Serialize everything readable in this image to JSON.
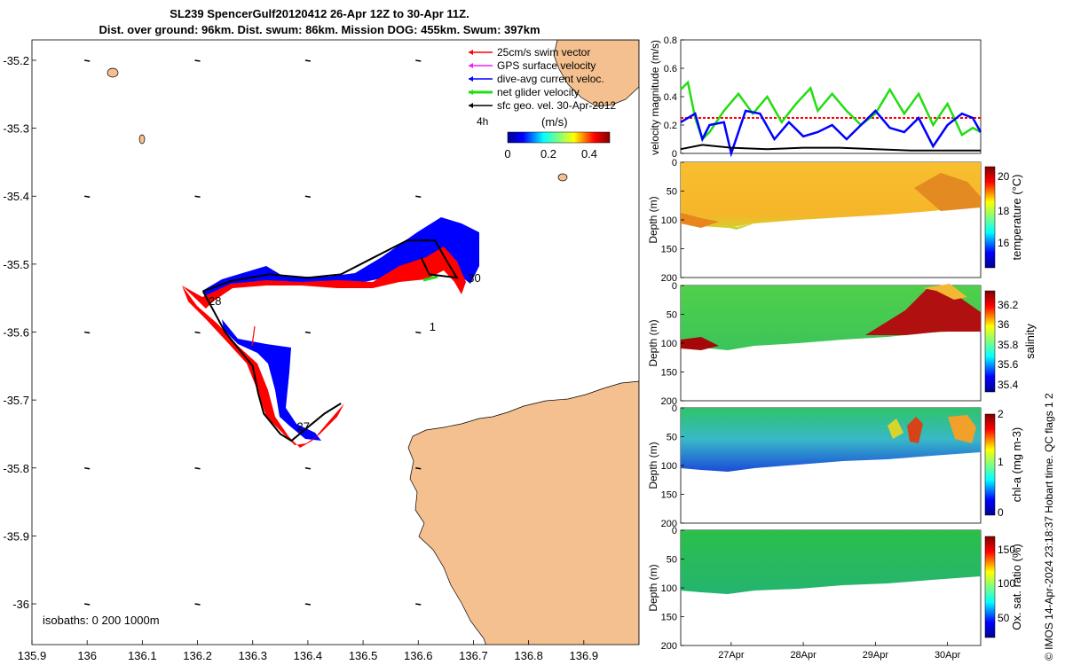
{
  "title": "SL239 SpencerGulf20120412 26-Apr 12Z to 30-Apr 11Z.",
  "subtitle": "Dist. over ground: 96km. Dist. swum: 86km. Mission DOG: 455km. Swum: 397km",
  "footer": "© IMOS 14-Apr-2024 23:18:37 Hobart time. QC flags 1  2",
  "colors": {
    "land": "#f5c08f",
    "red": "#ff0000",
    "blue": "#0000ff",
    "green": "#22dd11",
    "magenta": "#ee22ee",
    "black": "#000000"
  },
  "chart_data": [
    {
      "type": "scatter",
      "title": "Glider track map",
      "xlim": [
        135.9,
        137.0
      ],
      "ylim": [
        -36.06,
        -35.17
      ],
      "x_ticks": [
        "135.9",
        "136",
        "136.1",
        "136.2",
        "136.3",
        "136.4",
        "136.5",
        "136.6",
        "136.7",
        "136.8",
        "136.9"
      ],
      "y_ticks": [
        "-35.2",
        "-35.3",
        "-35.4",
        "-35.5",
        "-35.6",
        "-35.7",
        "-35.8",
        "-35.9",
        "-36"
      ],
      "legend": [
        {
          "label": "25cm/s swim vector",
          "color": "#ff0000"
        },
        {
          "label": "GPS surface velocity",
          "color": "#ee22ee"
        },
        {
          "label": "dive-avg current veloc.",
          "color": "#0000ff"
        },
        {
          "label": "net glider velocity",
          "color": "#22dd11"
        },
        {
          "label": "sfc geo. vel. 30-Apr-2012",
          "color": "#000000"
        }
      ],
      "legend_extra": "4h",
      "colorbar": {
        "label": "(m/s)",
        "ticks": [
          "0",
          "0.2",
          "0.4"
        ]
      },
      "isobaths": "isobaths: 0   200  1000m",
      "track": [
        [
          136.21,
          -35.54
        ],
        [
          136.26,
          -35.525
        ],
        [
          136.33,
          -35.515
        ],
        [
          136.4,
          -35.52
        ],
        [
          136.46,
          -35.515
        ],
        [
          136.52,
          -35.49
        ],
        [
          136.58,
          -35.465
        ],
        [
          136.63,
          -35.465
        ],
        [
          136.655,
          -35.5
        ],
        [
          136.67,
          -35.52
        ],
        [
          136.62,
          -35.515
        ],
        [
          136.605,
          -35.49
        ]
      ],
      "track2": [
        [
          136.21,
          -35.54
        ],
        [
          136.25,
          -35.6
        ],
        [
          136.3,
          -35.65
        ],
        [
          136.31,
          -35.69
        ],
        [
          136.32,
          -35.72
        ],
        [
          136.35,
          -35.75
        ],
        [
          136.37,
          -35.76
        ],
        [
          136.4,
          -35.74
        ],
        [
          136.43,
          -35.72
        ],
        [
          136.46,
          -35.705
        ]
      ],
      "point_labels": [
        {
          "text": "30",
          "x": 136.69,
          "y": -35.526
        },
        {
          "text": "1",
          "x": 136.62,
          "y": -35.598
        },
        {
          "text": "28",
          "x": 136.22,
          "y": -35.56
        },
        {
          "text": "27",
          "x": 136.38,
          "y": -35.745
        }
      ]
    },
    {
      "type": "line",
      "ylabel": "velocity magnitude (m/s)",
      "ylim": [
        0,
        0.8
      ],
      "y_ticks": [
        "0",
        "0.2",
        "0.4",
        "0.6",
        "0.8"
      ],
      "x_range_days": [
        26.3,
        30.46
      ],
      "series": [
        {
          "color": "#22dd11",
          "x": [
            26.3,
            26.4,
            26.5,
            26.6,
            26.7,
            26.9,
            27.1,
            27.3,
            27.5,
            27.7,
            27.9,
            28.1,
            28.2,
            28.4,
            28.6,
            28.8,
            29.0,
            29.2,
            29.4,
            29.6,
            29.8,
            30.0,
            30.2,
            30.35,
            30.46
          ],
          "values": [
            0.45,
            0.5,
            0.25,
            0.1,
            0.15,
            0.3,
            0.42,
            0.28,
            0.4,
            0.22,
            0.35,
            0.46,
            0.3,
            0.42,
            0.3,
            0.2,
            0.28,
            0.45,
            0.28,
            0.42,
            0.2,
            0.35,
            0.13,
            0.18,
            0.15
          ]
        },
        {
          "color": "#0000ff",
          "x": [
            26.3,
            26.5,
            26.6,
            26.7,
            26.9,
            27.0,
            27.2,
            27.4,
            27.6,
            27.8,
            28.0,
            28.2,
            28.4,
            28.6,
            28.8,
            29.0,
            29.2,
            29.4,
            29.6,
            29.8,
            30.0,
            30.2,
            30.35,
            30.46
          ],
          "values": [
            0.22,
            0.28,
            0.1,
            0.2,
            0.22,
            0.0,
            0.3,
            0.28,
            0.1,
            0.22,
            0.12,
            0.15,
            0.2,
            0.1,
            0.2,
            0.3,
            0.18,
            0.15,
            0.25,
            0.05,
            0.2,
            0.28,
            0.25,
            0.15
          ]
        },
        {
          "color": "#000000",
          "x": [
            26.3,
            26.6,
            27.0,
            27.5,
            28.0,
            28.5,
            29.0,
            29.5,
            30.0,
            30.46
          ],
          "values": [
            0.03,
            0.06,
            0.04,
            0.03,
            0.04,
            0.04,
            0.03,
            0.02,
            0.02,
            0.02
          ]
        }
      ],
      "reference_line": {
        "color": "#ff0000",
        "value": 0.25
      }
    },
    {
      "type": "heatmap",
      "ylabel": "Depth (m)",
      "colorbar_label": "temperature (°C)",
      "colorbar_ticks": [
        "20",
        "18",
        "16"
      ],
      "depth_ticks": [
        "0",
        "50",
        "100",
        "150",
        "200"
      ]
    },
    {
      "type": "heatmap",
      "ylabel": "Depth (m)",
      "colorbar_label": "salinity",
      "colorbar_ticks": [
        "36.2",
        "36",
        "35.8",
        "35.6",
        "35.4"
      ],
      "depth_ticks": [
        "0",
        "50",
        "100",
        "150",
        "200"
      ]
    },
    {
      "type": "heatmap",
      "ylabel": "Depth (m)",
      "colorbar_label": "chl-a (mg m-3)",
      "colorbar_ticks": [
        "2",
        "1",
        "0"
      ],
      "depth_ticks": [
        "0",
        "50",
        "100",
        "150",
        "200"
      ]
    },
    {
      "type": "heatmap",
      "ylabel": "Depth (m)",
      "colorbar_label": "Ox. sat. ratio (%)",
      "colorbar_ticks": [
        "150",
        "100",
        "50"
      ],
      "depth_ticks": [
        "0",
        "50",
        "100",
        "150",
        "200"
      ],
      "x_ticks": [
        "27Apr",
        "28Apr",
        "29Apr",
        "30Apr"
      ]
    }
  ]
}
